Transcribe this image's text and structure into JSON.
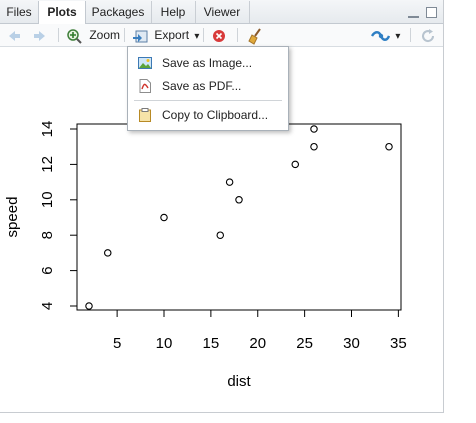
{
  "tabs": [
    {
      "label": "Files",
      "active": false
    },
    {
      "label": "Plots",
      "active": true
    },
    {
      "label": "Packages",
      "active": false
    },
    {
      "label": "Help",
      "active": false
    },
    {
      "label": "Viewer",
      "active": false
    }
  ],
  "toolbar": {
    "zoom_label": "Zoom",
    "export_label": "Export",
    "export_arrow": "▾"
  },
  "export_menu": {
    "items": [
      {
        "label": "Save as Image...",
        "icon": "image-icon"
      },
      {
        "label": "Save as PDF...",
        "icon": "pdf-icon"
      },
      {
        "label": "Copy to Clipboard...",
        "icon": "clipboard-icon"
      }
    ]
  },
  "chart_data": {
    "type": "scatter",
    "xlabel": "dist",
    "ylabel": "speed",
    "xlim": [
      2,
      34
    ],
    "ylim": [
      4,
      14
    ],
    "x_ticks": [
      5,
      10,
      15,
      20,
      25,
      30,
      35
    ],
    "y_ticks": [
      4,
      6,
      8,
      10,
      12,
      14
    ],
    "points": [
      {
        "x": 2,
        "y": 4
      },
      {
        "x": 4,
        "y": 7
      },
      {
        "x": 10,
        "y": 9
      },
      {
        "x": 16,
        "y": 8
      },
      {
        "x": 17,
        "y": 11
      },
      {
        "x": 18,
        "y": 10
      },
      {
        "x": 24,
        "y": 12
      },
      {
        "x": 26,
        "y": 13
      },
      {
        "x": 26,
        "y": 14
      },
      {
        "x": 34,
        "y": 13
      }
    ]
  }
}
